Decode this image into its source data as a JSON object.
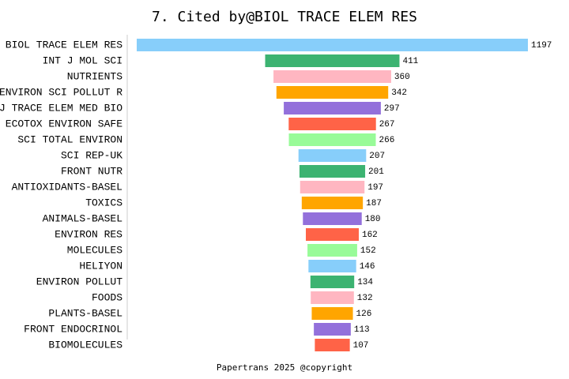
{
  "chart_data": {
    "type": "funnel",
    "title": "7. Cited by@BIOL TRACE ELEM RES",
    "footer": "Papertrans 2025 @copyright",
    "categories": [
      "BIOL TRACE ELEM RES",
      "INT J MOL SCI",
      "NUTRIENTS",
      "ENVIRON SCI POLLUT R",
      "J TRACE ELEM MED BIO",
      "ECOTOX ENVIRON SAFE",
      "SCI TOTAL ENVIRON",
      "SCI REP-UK",
      "FRONT NUTR",
      "ANTIOXIDANTS-BASEL",
      "TOXICS",
      "ANIMALS-BASEL",
      "ENVIRON RES",
      "MOLECULES",
      "HELIYON",
      "ENVIRON POLLUT",
      "FOODS",
      "PLANTS-BASEL",
      "FRONT ENDOCRINOL",
      "BIOMOLECULES"
    ],
    "values": [
      1197,
      411,
      360,
      342,
      297,
      267,
      266,
      207,
      201,
      197,
      187,
      180,
      162,
      152,
      146,
      134,
      132,
      126,
      113,
      107
    ],
    "colors": [
      "#87cefa",
      "#3cb371",
      "#ffb6c1",
      "#ffa500",
      "#9370db",
      "#ff6347",
      "#98fb98"
    ]
  }
}
